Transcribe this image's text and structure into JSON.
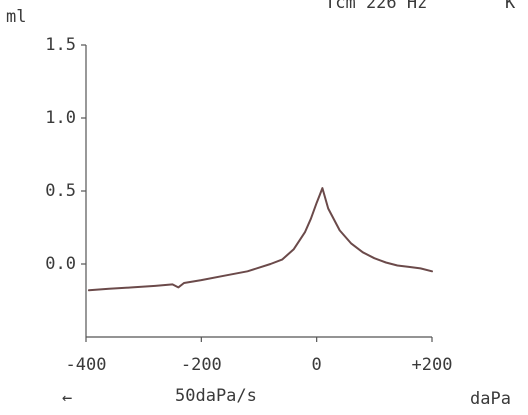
{
  "header": {
    "top_text_1": "Tcm 226 Hz",
    "top_text_2": "K"
  },
  "chart_data": {
    "type": "line",
    "title": "",
    "ylabel": "ml",
    "xlabel": "daPa",
    "xlim": [
      -400,
      200
    ],
    "ylim": [
      -0.5,
      1.5
    ],
    "x_ticks": [
      -400,
      -200,
      0,
      200
    ],
    "x_tick_labels": [
      "-400",
      "-200",
      "0",
      "+200"
    ],
    "y_ticks": [
      0.0,
      0.5,
      1.0,
      1.5
    ],
    "y_tick_labels": [
      "0.0",
      "0.5",
      "1.0",
      "1.5"
    ],
    "grid": false,
    "line_color": "#6b4a4a",
    "series": [
      {
        "x": [
          -395,
          -360,
          -320,
          -280,
          -250,
          -240,
          -230,
          -200,
          -160,
          -120,
          -80,
          -60,
          -40,
          -20,
          -10,
          0,
          5,
          10,
          20,
          40,
          60,
          80,
          100,
          120,
          140,
          160,
          180,
          200
        ],
        "y": [
          -0.18,
          -0.17,
          -0.16,
          -0.15,
          -0.14,
          -0.16,
          -0.13,
          -0.11,
          -0.08,
          -0.05,
          0.0,
          0.03,
          0.1,
          0.22,
          0.31,
          0.42,
          0.47,
          0.52,
          0.38,
          0.23,
          0.14,
          0.08,
          0.04,
          0.01,
          -0.01,
          -0.02,
          -0.03,
          -0.05
        ]
      }
    ]
  },
  "footer": {
    "arrow_glyph": "←",
    "rate_label": "50daPa/s"
  }
}
